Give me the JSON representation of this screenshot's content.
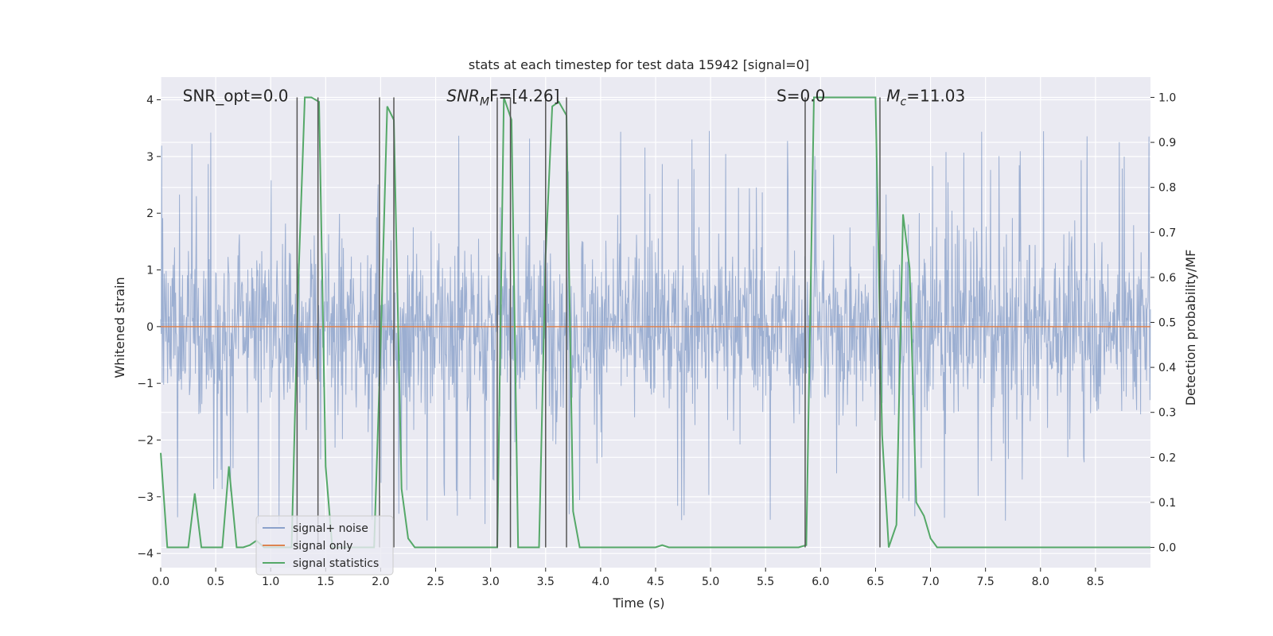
{
  "chart_data": {
    "type": "line",
    "title": "stats at each timestep for test data 15942 [signal=0]",
    "xlabel": "Time (s)",
    "ylabel": "Whitened strain",
    "ylabel_right": "Detection probability/MF",
    "xlim": [
      0,
      9.0
    ],
    "ylim": [
      -4.25,
      4.4
    ],
    "ylim_right": [
      -0.045,
      1.045
    ],
    "x_ticks": [
      0.0,
      0.5,
      1.0,
      1.5,
      2.0,
      2.5,
      3.0,
      3.5,
      4.0,
      4.5,
      5.0,
      5.5,
      6.0,
      6.5,
      7.0,
      7.5,
      8.0,
      8.5
    ],
    "x_tick_labels": [
      "0.0",
      "0.5",
      "1.0",
      "1.5",
      "2.0",
      "2.5",
      "3.0",
      "3.5",
      "4.0",
      "4.5",
      "5.0",
      "5.5",
      "6.0",
      "6.5",
      "7.0",
      "7.5",
      "8.0",
      "8.5"
    ],
    "y_ticks": [
      4,
      3,
      2,
      1,
      0,
      -1,
      -2,
      -3,
      -4
    ],
    "y_tick_labels": [
      "4",
      "3",
      "2",
      "1",
      "0",
      "−1",
      "−2",
      "−3",
      "−4"
    ],
    "y_right_ticks": [
      1.0,
      0.9,
      0.8,
      0.7,
      0.6,
      0.5,
      0.4,
      0.3,
      0.2,
      0.1,
      0.0
    ],
    "y_right_tick_labels": [
      "1.0",
      "0.9",
      "0.8",
      "0.7",
      "0.6",
      "0.5",
      "0.4",
      "0.3",
      "0.2",
      "0.1",
      "0.0"
    ],
    "grid": true,
    "legend_position": "lower-left",
    "annotations": [
      {
        "text": "SNR_opt=0.0",
        "x": 0.2,
        "y": 4.0
      },
      {
        "text": "SNR",
        "sub": "M",
        "rest": "F=[4.26]",
        "x": 2.6,
        "y": 4.0
      },
      {
        "text": "S=0.0",
        "x": 5.6,
        "y": 4.0
      },
      {
        "text": "M",
        "sub": "c",
        "rest": "=11.03",
        "x": 6.6,
        "y": 4.0
      }
    ],
    "series": [
      {
        "name": "signal+ noise",
        "color": "#4c72b0",
        "kind": "noise",
        "x_range": [
          0,
          9.0
        ],
        "approx_band": [
          -1.5,
          1.6
        ],
        "approx_peaks": [
          3.4,
          -3.9
        ],
        "n_points": 2000
      },
      {
        "name": "signal only",
        "color": "#dd8452",
        "x": [
          0.0,
          9.0
        ],
        "y": [
          0.0,
          0.0
        ]
      },
      {
        "name": "signal statistics",
        "color": "#55a868",
        "axis": "right",
        "x": [
          0.0,
          0.06,
          0.12,
          0.25,
          0.31,
          0.37,
          0.44,
          0.5,
          0.56,
          0.62,
          0.69,
          0.75,
          0.81,
          0.87,
          0.94,
          1.0,
          1.06,
          1.12,
          1.19,
          1.25,
          1.31,
          1.37,
          1.44,
          1.5,
          1.56,
          1.62,
          1.69,
          1.75,
          1.81,
          1.87,
          1.94,
          2.0,
          2.06,
          2.12,
          2.19,
          2.25,
          2.31,
          2.37,
          2.44,
          2.5,
          2.56,
          2.62,
          2.69,
          2.75,
          2.81,
          2.87,
          2.94,
          3.0,
          3.06,
          3.12,
          3.19,
          3.25,
          3.31,
          3.37,
          3.44,
          3.5,
          3.56,
          3.62,
          3.69,
          3.75,
          3.81,
          3.87,
          3.94,
          4.0,
          4.5,
          4.56,
          4.62,
          4.69,
          4.75,
          5.0,
          5.5,
          5.8,
          5.87,
          5.94,
          6.0,
          6.06,
          6.12,
          6.25,
          6.5,
          6.56,
          6.62,
          6.69,
          6.75,
          6.81,
          6.87,
          6.94,
          7.0,
          7.06,
          7.12,
          7.19,
          7.25,
          7.5,
          7.75,
          7.94,
          8.0,
          8.5,
          9.0
        ],
        "y": [
          0.21,
          0.0,
          0.0,
          0.0,
          0.12,
          0.0,
          0.0,
          0.0,
          0.0,
          0.18,
          0.0,
          0.0,
          0.005,
          0.015,
          0.0,
          0.0,
          0.0,
          0.0,
          0.0,
          0.58,
          1.0,
          1.0,
          0.99,
          0.18,
          0.0,
          0.0,
          0.0,
          0.0,
          0.0,
          0.0,
          0.0,
          0.45,
          0.98,
          0.95,
          0.13,
          0.02,
          0.0,
          0.0,
          0.0,
          0.0,
          0.0,
          0.0,
          0.0,
          0.0,
          0.0,
          0.0,
          0.0,
          0.0,
          0.0,
          1.0,
          0.95,
          0.0,
          0.0,
          0.0,
          0.0,
          0.65,
          0.98,
          0.99,
          0.96,
          0.08,
          0.0,
          0.0,
          0.0,
          0.0,
          0.0,
          0.005,
          0.0,
          0.0,
          0.0,
          0.0,
          0.0,
          0.0,
          0.005,
          1.0,
          1.0,
          1.0,
          1.0,
          1.0,
          1.0,
          0.25,
          0.0,
          0.05,
          0.74,
          0.62,
          0.1,
          0.07,
          0.02,
          0.0,
          0.0,
          0.0,
          0.0,
          0.0,
          0.0,
          0.0,
          0.0,
          0.0,
          0.0
        ]
      }
    ],
    "vertical_lines": [
      1.24,
      1.43,
      1.99,
      2.12,
      3.06,
      3.18,
      3.5,
      3.69,
      5.86,
      6.54
    ]
  }
}
